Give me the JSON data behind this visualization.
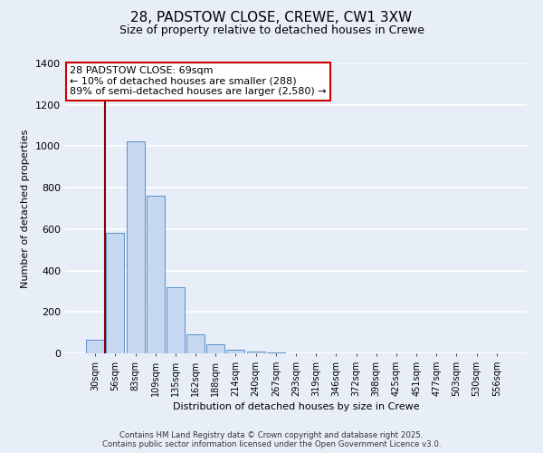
{
  "title": "28, PADSTOW CLOSE, CREWE, CW1 3XW",
  "subtitle": "Size of property relative to detached houses in Crewe",
  "xlabel": "Distribution of detached houses by size in Crewe",
  "ylabel": "Number of detached properties",
  "bar_labels": [
    "30sqm",
    "56sqm",
    "83sqm",
    "109sqm",
    "135sqm",
    "162sqm",
    "188sqm",
    "214sqm",
    "240sqm",
    "267sqm",
    "293sqm",
    "319sqm",
    "346sqm",
    "372sqm",
    "398sqm",
    "425sqm",
    "451sqm",
    "477sqm",
    "503sqm",
    "530sqm",
    "556sqm"
  ],
  "bar_values": [
    65,
    580,
    1025,
    760,
    320,
    90,
    42,
    18,
    8,
    3,
    1,
    0,
    0,
    0,
    0,
    0,
    0,
    0,
    0,
    0,
    0
  ],
  "bar_color": "#c5d8f0",
  "bar_edge_color": "#5b8fc9",
  "ylim": [
    0,
    1400
  ],
  "yticks": [
    0,
    200,
    400,
    600,
    800,
    1000,
    1200,
    1400
  ],
  "vline_x": 0.5,
  "vline_color": "#8b0000",
  "annotation_title": "28 PADSTOW CLOSE: 69sqm",
  "annotation_line1": "← 10% of detached houses are smaller (288)",
  "annotation_line2": "89% of semi-detached houses are larger (2,580) →",
  "annotation_box_color": "#ffffff",
  "annotation_box_edge": "#cc0000",
  "footer1": "Contains HM Land Registry data © Crown copyright and database right 2025.",
  "footer2": "Contains public sector information licensed under the Open Government Licence v3.0.",
  "bg_color": "#e8eef8",
  "grid_color": "#ffffff"
}
